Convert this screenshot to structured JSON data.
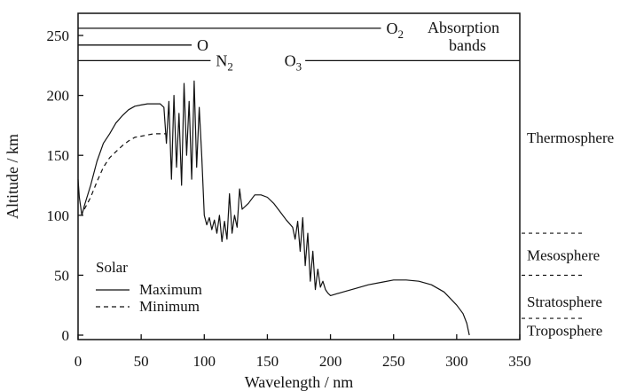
{
  "chart_data": {
    "type": "line",
    "title": "",
    "xlabel": "Wavelength / nm",
    "ylabel": "Altitude / km",
    "xlim": [
      0,
      350
    ],
    "ylim": [
      0,
      270
    ],
    "xticks": [
      0,
      50,
      100,
      150,
      200,
      250,
      300,
      350
    ],
    "yticks": [
      0,
      50,
      100,
      150,
      200,
      250
    ],
    "grid": false,
    "legend": {
      "title": "Solar",
      "placement": "lower-left",
      "entries": [
        {
          "label": "Maximum",
          "style": "solid"
        },
        {
          "label": "Minimum",
          "style": "dashed"
        }
      ]
    },
    "series": [
      {
        "name": "Maximum",
        "style": "solid",
        "x": [
          0,
          1,
          3,
          5,
          10,
          15,
          20,
          25,
          30,
          35,
          40,
          45,
          50,
          55,
          60,
          65,
          68,
          70,
          72,
          74,
          76,
          78,
          80,
          82,
          84,
          86,
          88,
          90,
          92,
          94,
          96,
          98,
          100,
          102,
          104,
          106,
          108,
          110,
          112,
          114,
          116,
          118,
          120,
          122,
          124,
          126,
          128,
          130,
          135,
          140,
          145,
          150,
          155,
          160,
          165,
          170,
          172,
          174,
          176,
          178,
          180,
          182,
          184,
          186,
          188,
          190,
          192,
          194,
          196,
          198,
          200,
          210,
          220,
          230,
          240,
          250,
          260,
          270,
          280,
          290,
          300,
          305,
          308,
          310
        ],
        "y": [
          130,
          115,
          100,
          108,
          125,
          145,
          160,
          168,
          177,
          183,
          188,
          191,
          192,
          193,
          193,
          193,
          190,
          160,
          195,
          130,
          200,
          140,
          185,
          125,
          210,
          150,
          195,
          130,
          212,
          140,
          190,
          150,
          100,
          92,
          98,
          88,
          96,
          85,
          100,
          78,
          95,
          80,
          118,
          85,
          100,
          90,
          122,
          105,
          110,
          117,
          117,
          115,
          110,
          103,
          96,
          90,
          80,
          95,
          70,
          98,
          58,
          85,
          45,
          70,
          38,
          55,
          40,
          45,
          38,
          35,
          33,
          36,
          39,
          42,
          44,
          46,
          46,
          45,
          42,
          36,
          25,
          18,
          10,
          0
        ]
      },
      {
        "name": "Minimum",
        "style": "dashed",
        "x": [
          5,
          10,
          15,
          20,
          25,
          30,
          35,
          40,
          45,
          50,
          55,
          60,
          65,
          70
        ],
        "y": [
          105,
          115,
          128,
          140,
          148,
          153,
          158,
          162,
          165,
          166,
          167,
          168,
          168,
          168
        ]
      }
    ],
    "absorption_bands": {
      "title": "Absorption bands",
      "bands": [
        {
          "species": "O",
          "subscript": "2",
          "x_start": 0,
          "x_end": 240,
          "y": 256
        },
        {
          "species": "O",
          "subscript": "",
          "x_start": 0,
          "x_end": 90,
          "y": 242
        },
        {
          "species": "N",
          "subscript": "2",
          "x_start": 0,
          "x_end": 105,
          "y": 229
        },
        {
          "species": "O",
          "subscript": "3",
          "x_start": 180,
          "x_end": 350,
          "y": 229
        }
      ]
    },
    "atmosphere_layers": [
      {
        "name": "Thermosphere",
        "label_y": 165,
        "boundary_y": null
      },
      {
        "name": "Mesosphere",
        "label_y": 67,
        "boundary_y": 85
      },
      {
        "name": "Stratosphere",
        "label_y": 28,
        "boundary_y": 50
      },
      {
        "name": "Troposphere",
        "label_y": 4,
        "boundary_y": 14
      }
    ]
  }
}
